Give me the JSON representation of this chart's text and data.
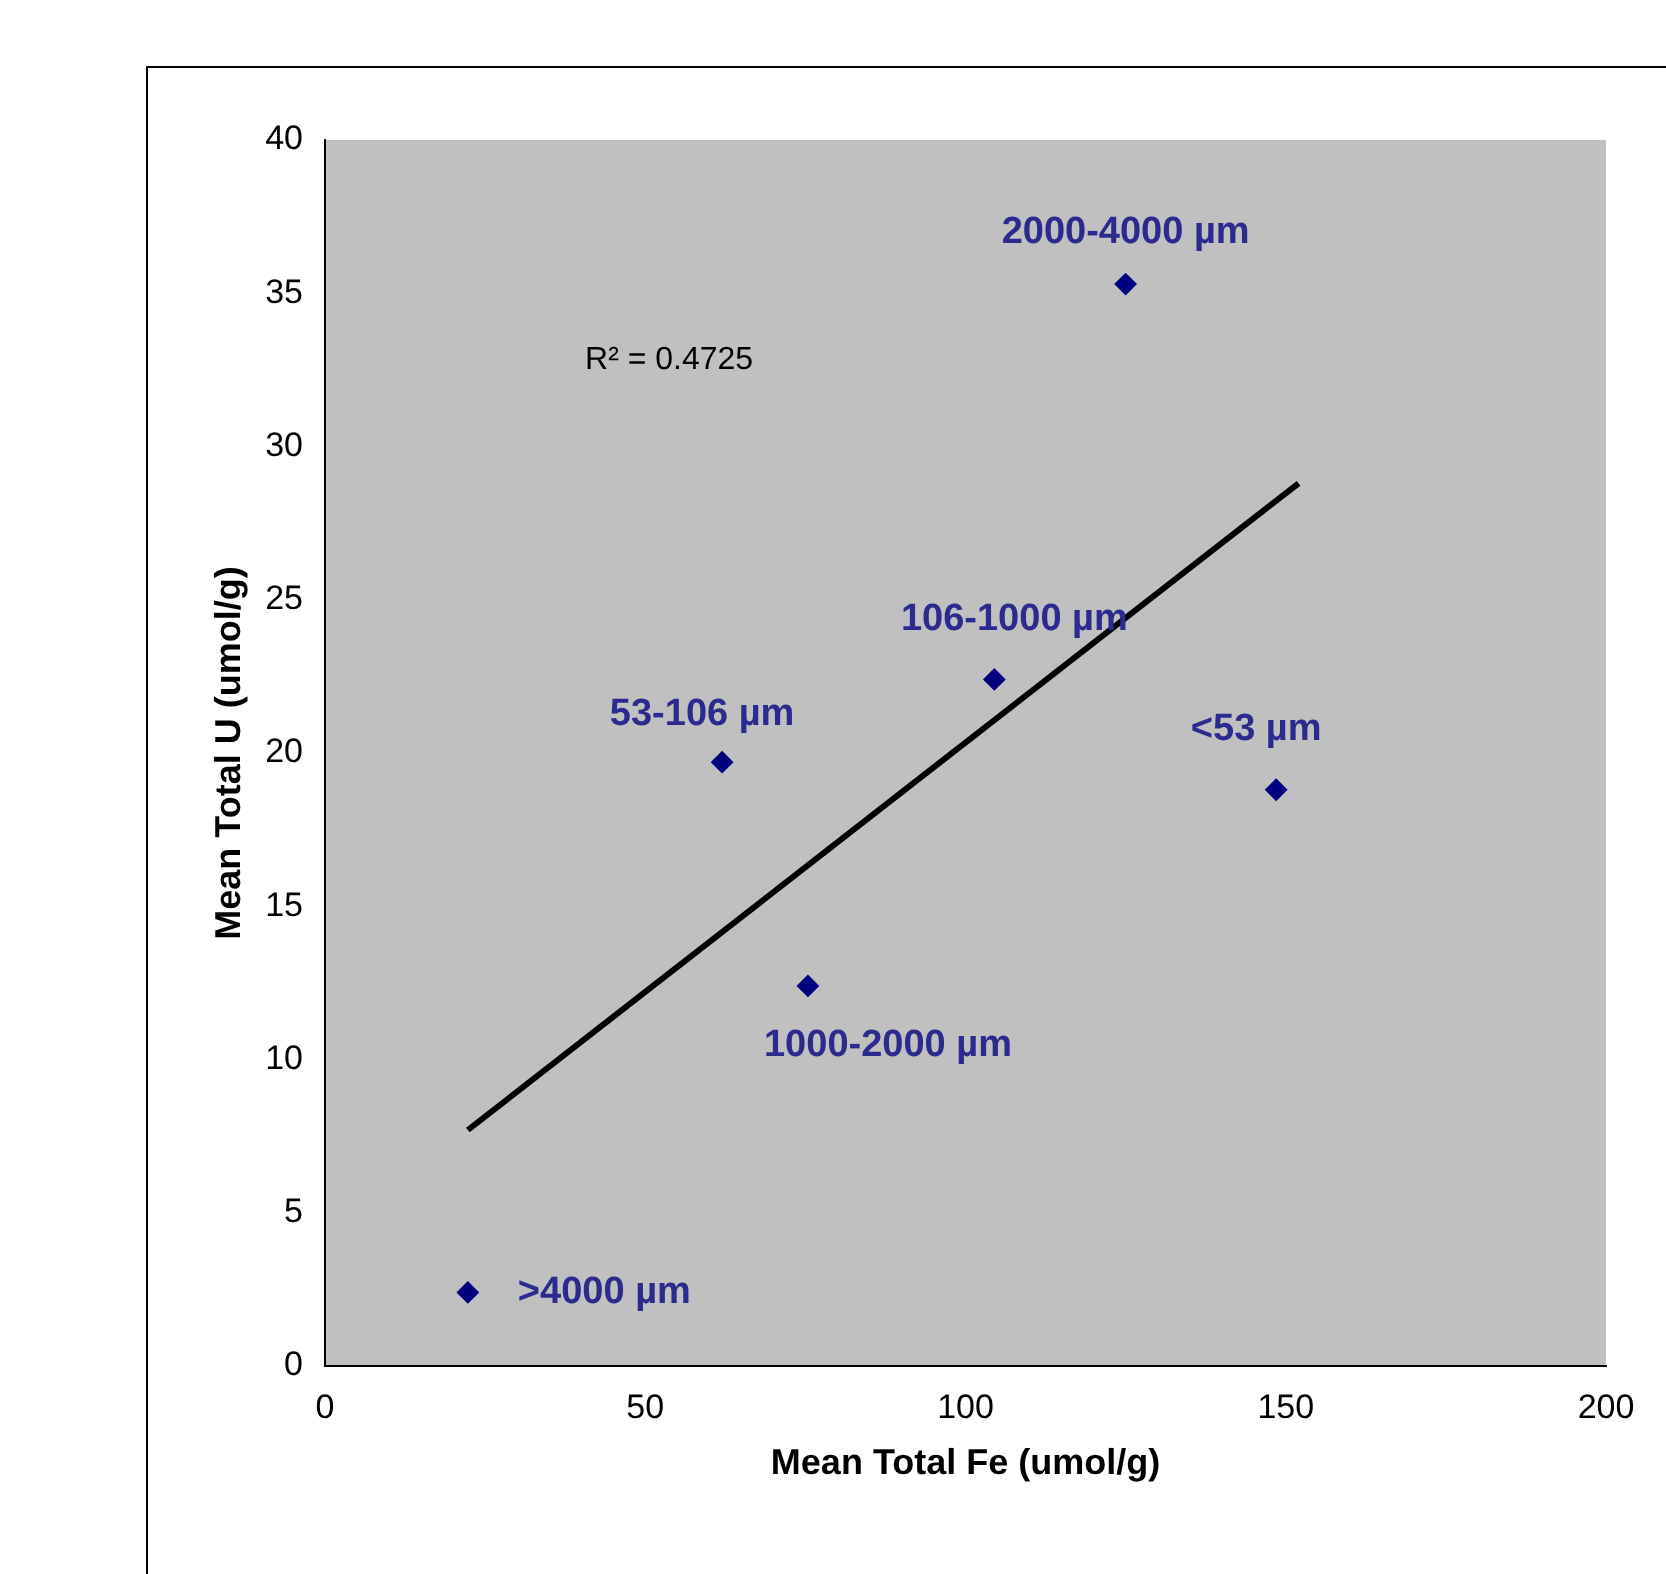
{
  "chart_data": {
    "type": "scatter",
    "xlabel": "Mean Total Fe (umol/g)",
    "ylabel": "Mean Total U (umol/g)",
    "x": [
      125,
      104.5,
      62,
      148.5,
      75.4,
      22.3
    ],
    "series": [
      {
        "color": "#000080",
        "values": [
          35.3,
          22.4,
          19.7,
          18.8,
          12.4,
          2.4
        ],
        "marker": "diamond"
      },
      {
        "type": "line",
        "color": "#000000",
        "x": [
          22.3,
          152
        ],
        "values": [
          7.7,
          28.8
        ]
      }
    ],
    "xlim": [
      0,
      200
    ],
    "xticks": [
      0,
      50,
      100,
      150,
      200
    ],
    "ylim": [
      0,
      40
    ],
    "yticks": [
      0,
      5,
      10,
      15,
      20,
      25,
      30,
      35,
      40
    ],
    "grid": false,
    "legend": false,
    "annotations": [
      {
        "text": "2000-4000 µm",
        "x": 125,
        "y": 35.3
      },
      {
        "text": "106-1000 µm",
        "x": 104.5,
        "y": 22.4
      },
      {
        "text": "53-106 µm",
        "x": 62,
        "y": 19.7
      },
      {
        "text": "<53 µm",
        "x": 148.5,
        "y": 18.8
      },
      {
        "text": "1000-2000 µm",
        "x": 75.4,
        "y": 12.4
      },
      {
        "text": ">4000 µm",
        "x": 22.3,
        "y": 2.4
      },
      "R² = 0.4725"
    ]
  }
}
